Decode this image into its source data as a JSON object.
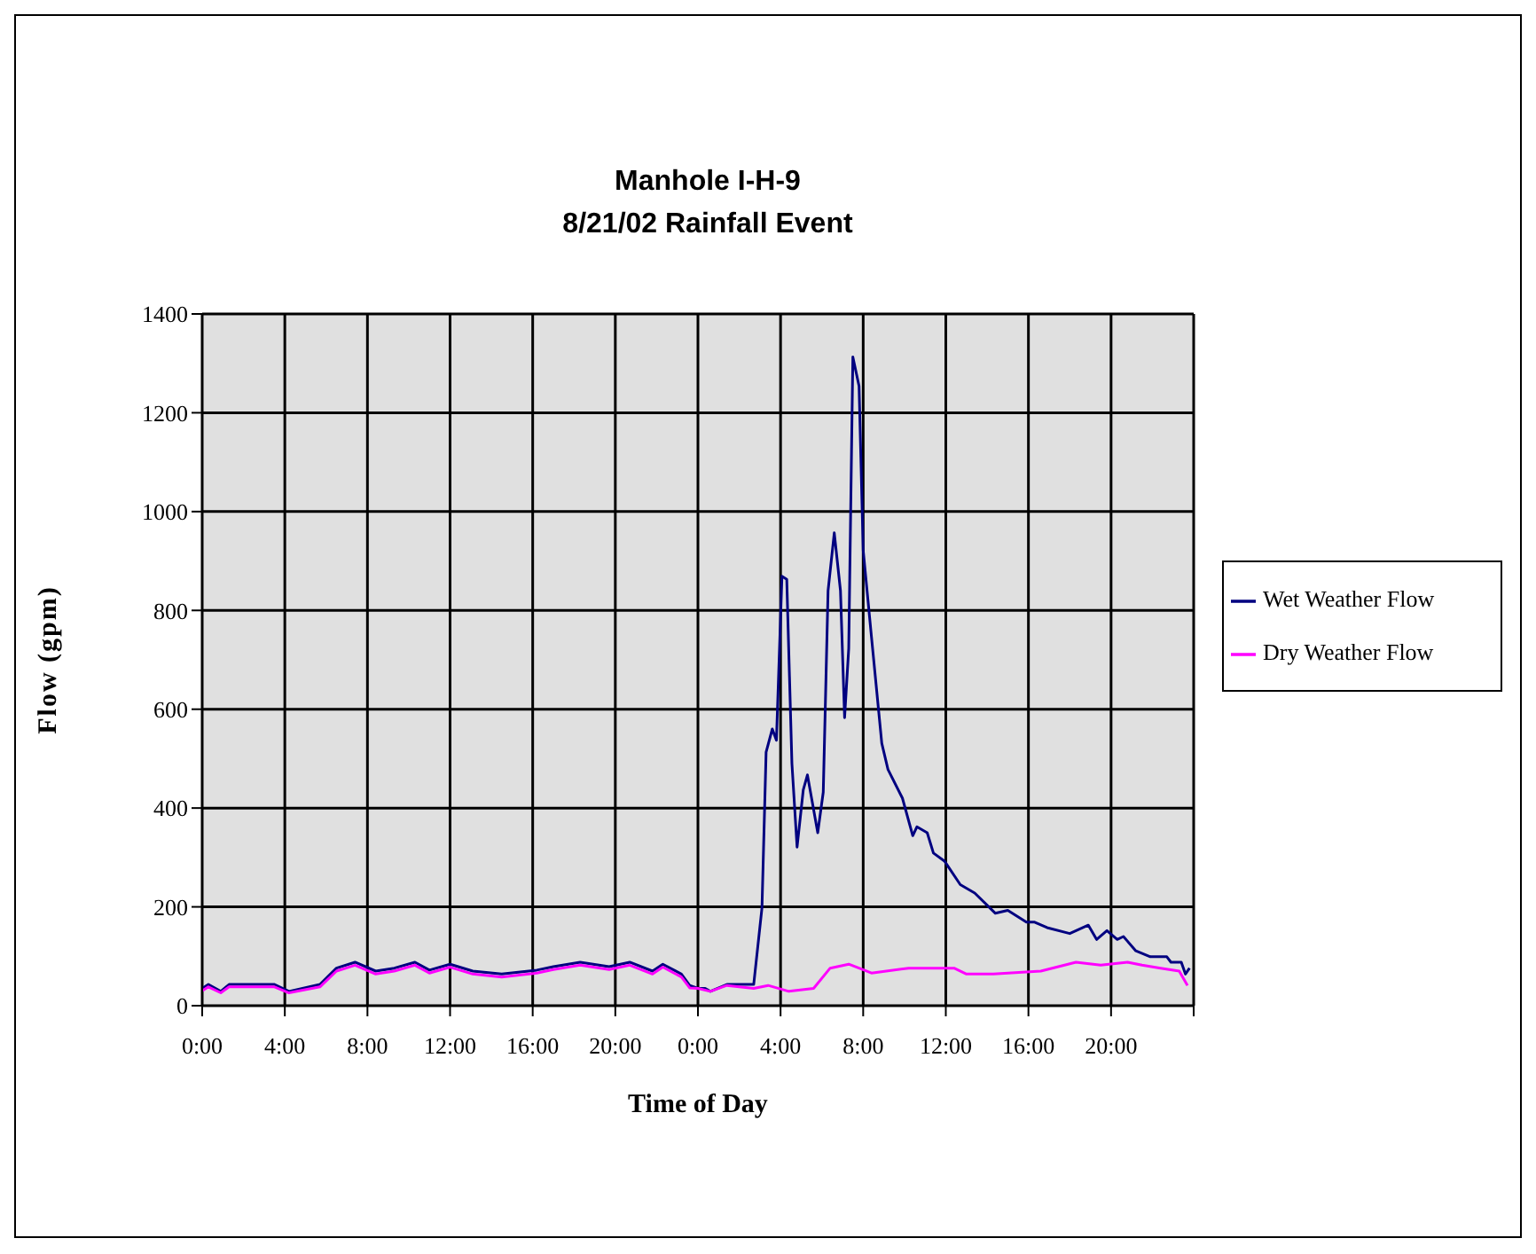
{
  "chart_data": {
    "type": "line",
    "title": "Manhole I-H-9",
    "subtitle": "8/21/02 Rainfall Event",
    "xlabel": "Time of Day",
    "ylabel": "Flow (gpm)",
    "xlim": [
      "--08-20T00:00",
      "--08-22T00:00"
    ],
    "xticks": [
      {
        "value": "--08-20T00:00",
        "label": "0:00"
      },
      {
        "value": "--08-20T04:00",
        "label": "4:00"
      },
      {
        "value": "--08-20T08:00",
        "label": "8:00"
      },
      {
        "value": "--08-20T12:00",
        "label": "12:00"
      },
      {
        "value": "--08-20T16:00",
        "label": "16:00"
      },
      {
        "value": "--08-20T20:00",
        "label": "20:00"
      },
      {
        "value": "--08-21T00:00",
        "label": "0:00"
      },
      {
        "value": "--08-21T04:00",
        "label": "4:00"
      },
      {
        "value": "--08-21T08:00",
        "label": "8:00"
      },
      {
        "value": "--08-21T12:00",
        "label": "12:00"
      },
      {
        "value": "--08-21T16:00",
        "label": "16:00"
      },
      {
        "value": "--08-21T20:00",
        "label": "20:00"
      },
      {
        "value": "--08-22T00:00",
        "label": null
      }
    ],
    "ylim": [
      0,
      1400
    ],
    "yticks": [
      0,
      200,
      400,
      600,
      800,
      1000,
      1200,
      1400
    ],
    "grid": true,
    "legend": "right",
    "series": [
      {
        "name": "Wet Weather Flow",
        "color": "#000080",
        "x": [
          "--08-20T00:00",
          "--08-20T00:18",
          "--08-20T00:54",
          "--08-20T01:18",
          "--08-20T03:30",
          "--08-20T04:12",
          "--08-20T05:42",
          "--08-20T06:30",
          "--08-20T07:24",
          "--08-20T08:24",
          "--08-20T09:18",
          "--08-20T10:18",
          "--08-20T11:00",
          "--08-20T12:00",
          "--08-20T13:06",
          "--08-20T14:30",
          "--08-20T16:12",
          "--08-20T17:00",
          "--08-20T18:18",
          "--08-20T19:42",
          "--08-20T20:42",
          "--08-20T21:48",
          "--08-20T22:18",
          "--08-20T23:12",
          "--08-20T23:36",
          "--08-21T00:00",
          "--08-21T00:21",
          "--08-21T00:36",
          "--08-21T01:24",
          "--08-21T02:42",
          "--08-21T03:06",
          "--08-21T03:18",
          "--08-21T03:36",
          "--08-21T03:48",
          "--08-21T04:04",
          "--08-21T04:18",
          "--08-21T04:33",
          "--08-21T04:48",
          "--08-21T05:06",
          "--08-21T05:18",
          "--08-21T05:48",
          "--08-21T06:04",
          "--08-21T06:18",
          "--08-21T06:36",
          "--08-21T06:54",
          "--08-21T07:06",
          "--08-21T07:18",
          "--08-21T07:30",
          "--08-21T07:48",
          "--08-21T08:00",
          "--08-21T08:24",
          "--08-21T08:54",
          "--08-21T09:12",
          "--08-21T09:54",
          "--08-21T10:24",
          "--08-21T10:36",
          "--08-21T11:06",
          "--08-21T11:24",
          "--08-21T11:57",
          "--08-21T12:42",
          "--08-21T13:24",
          "--08-21T14:24",
          "--08-21T15:00",
          "--08-21T15:54",
          "--08-21T16:18",
          "--08-21T16:54",
          "--08-21T18:00",
          "--08-21T18:54",
          "--08-21T19:18",
          "--08-21T19:48",
          "--08-21T20:18",
          "--08-21T20:36",
          "--08-21T21:12",
          "--08-21T21:54",
          "--08-21T22:42",
          "--08-21T22:54",
          "--08-21T23:24",
          "--08-21T23:36",
          "--08-21T23:48"
        ],
        "values": [
          35,
          43,
          29,
          43,
          43,
          29,
          43,
          76,
          88,
          70,
          76,
          88,
          72,
          84,
          70,
          64,
          72,
          79,
          88,
          79,
          88,
          70,
          84,
          64,
          41,
          35,
          35,
          29,
          43,
          43,
          198,
          513,
          560,
          537,
          869,
          863,
          490,
          321,
          437,
          467,
          350,
          432,
          840,
          957,
          840,
          583,
          723,
          1313,
          1254,
          922,
          747,
          531,
          478,
          420,
          344,
          362,
          350,
          309,
          292,
          245,
          228,
          187,
          193,
          169,
          169,
          158,
          146,
          163,
          134,
          152,
          134,
          140,
          111,
          99,
          99,
          88,
          88,
          64,
          76
        ]
      },
      {
        "name": "Dry Weather Flow",
        "color": "#ff00ff",
        "x": [
          "--08-20T00:00",
          "--08-20T00:18",
          "--08-20T00:54",
          "--08-20T01:18",
          "--08-20T03:30",
          "--08-20T04:12",
          "--08-20T05:42",
          "--08-20T06:30",
          "--08-20T07:24",
          "--08-20T08:24",
          "--08-20T09:18",
          "--08-20T10:18",
          "--08-20T11:00",
          "--08-20T12:00",
          "--08-20T13:06",
          "--08-20T14:30",
          "--08-20T16:12",
          "--08-20T17:00",
          "--08-20T18:18",
          "--08-20T19:42",
          "--08-20T20:42",
          "--08-20T21:48",
          "--08-20T22:18",
          "--08-20T23:12",
          "--08-20T23:36",
          "--08-21T00:00",
          "--08-21T00:36",
          "--08-21T01:24",
          "--08-21T02:42",
          "--08-21T03:24",
          "--08-21T04:24",
          "--08-21T05:36",
          "--08-21T06:24",
          "--08-21T07:18",
          "--08-21T07:48",
          "--08-21T08:24",
          "--08-21T10:12",
          "--08-21T12:24",
          "--08-21T13:00",
          "--08-21T14:18",
          "--08-21T16:36",
          "--08-21T18:18",
          "--08-21T19:30",
          "--08-21T20:48",
          "--08-21T21:30",
          "--08-21T22:24",
          "--08-21T23:18",
          "--08-21T23:42"
        ],
        "values": [
          30,
          38,
          26,
          38,
          38,
          26,
          38,
          70,
          82,
          64,
          70,
          82,
          66,
          78,
          64,
          58,
          66,
          73,
          82,
          73,
          82,
          64,
          78,
          58,
          36,
          35,
          29,
          41,
          35,
          41,
          29,
          35,
          76,
          84,
          76,
          66,
          76,
          76,
          64,
          64,
          70,
          88,
          82,
          88,
          82,
          76,
          70,
          41
        ]
      }
    ]
  }
}
